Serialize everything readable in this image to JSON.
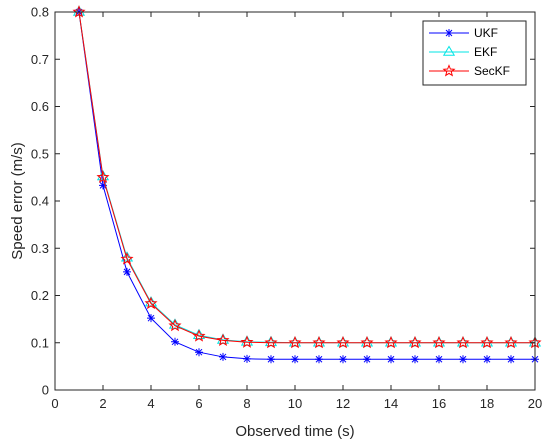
{
  "chart_data": {
    "type": "line",
    "xlabel": "Observed time (s)",
    "ylabel": "Speed error (m/s)",
    "xlim": [
      0,
      20
    ],
    "ylim": [
      0,
      0.8
    ],
    "xticks": [
      0,
      2,
      4,
      6,
      8,
      10,
      12,
      14,
      16,
      18,
      20
    ],
    "yticks": [
      0,
      0.1,
      0.2,
      0.3,
      0.4,
      0.5,
      0.6,
      0.7,
      0.8
    ],
    "xtick_labels": [
      "0",
      "2",
      "4",
      "6",
      "8",
      "10",
      "12",
      "14",
      "16",
      "18",
      "20"
    ],
    "ytick_labels": [
      "0",
      "0.1",
      "0.2",
      "0.3",
      "0.4",
      "0.5",
      "0.6",
      "0.7",
      "0.8"
    ],
    "grid": false,
    "legend_position": "top-right",
    "x": [
      1,
      2,
      3,
      4,
      5,
      6,
      7,
      8,
      9,
      10,
      11,
      12,
      13,
      14,
      15,
      16,
      17,
      18,
      19,
      20
    ],
    "series": [
      {
        "name": "UKF",
        "color": "#0000ff",
        "marker": "asterisk",
        "values": [
          0.8,
          0.433,
          0.25,
          0.152,
          0.102,
          0.08,
          0.07,
          0.066,
          0.065,
          0.065,
          0.065,
          0.065,
          0.065,
          0.065,
          0.065,
          0.065,
          0.065,
          0.065,
          0.065,
          0.065
        ]
      },
      {
        "name": "EKF",
        "color": "#00e5e5",
        "marker": "triangle",
        "values": [
          0.8,
          0.452,
          0.28,
          0.185,
          0.138,
          0.116,
          0.106,
          0.102,
          0.101,
          0.1,
          0.1,
          0.1,
          0.1,
          0.1,
          0.1,
          0.1,
          0.1,
          0.1,
          0.1,
          0.1
        ]
      },
      {
        "name": "SecKF",
        "color": "#ff0000",
        "marker": "hexagram",
        "values": [
          0.8,
          0.45,
          0.277,
          0.183,
          0.136,
          0.114,
          0.105,
          0.101,
          0.1,
          0.1,
          0.1,
          0.1,
          0.1,
          0.1,
          0.1,
          0.1,
          0.1,
          0.1,
          0.1,
          0.1
        ]
      }
    ]
  }
}
